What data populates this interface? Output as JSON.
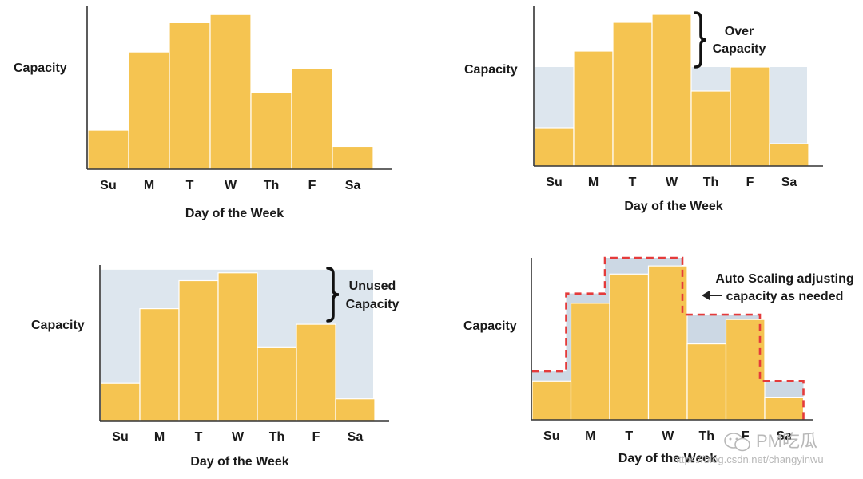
{
  "colors": {
    "bar_fill": "#f5c451",
    "bar_stroke": "#ffffff",
    "capacity_band": "#dde6ee",
    "scaling_band": "#ccd8e4",
    "dashed_line": "#e43b3b",
    "axis": "#333333",
    "text": "#1a1a1a"
  },
  "watermark": {
    "brand": "PM吃瓜",
    "url": "https://blog.csdn.net/changyinwu"
  },
  "chart_data": [
    {
      "type": "bar",
      "panel": "top-left",
      "categories": [
        "Su",
        "M",
        "T",
        "W",
        "Th",
        "F",
        "Sa"
      ],
      "values": [
        24,
        72,
        90,
        95,
        47,
        62,
        14
      ],
      "ylabel": "Capacity",
      "xlabel": "Day of the Week",
      "ylim": [
        0,
        100
      ],
      "grid": false
    },
    {
      "type": "bar",
      "panel": "top-right",
      "categories": [
        "Su",
        "M",
        "T",
        "W",
        "Th",
        "F",
        "Sa"
      ],
      "values": [
        24,
        72,
        90,
        95,
        47,
        62,
        14
      ],
      "capacity_level": 62,
      "annotation": "Over Capacity",
      "ylabel": "Capacity",
      "xlabel": "Day of the Week",
      "ylim": [
        0,
        100
      ],
      "grid": false
    },
    {
      "type": "bar",
      "panel": "bottom-left",
      "categories": [
        "Su",
        "M",
        "T",
        "W",
        "Th",
        "F",
        "Sa"
      ],
      "values": [
        24,
        72,
        90,
        95,
        47,
        62,
        14
      ],
      "capacity_level": 97,
      "annotation": "Unused Capacity",
      "ylabel": "Capacity",
      "xlabel": "Day of the Week",
      "ylim": [
        0,
        100
      ],
      "grid": false
    },
    {
      "type": "bar",
      "panel": "bottom-right",
      "categories": [
        "Su",
        "M",
        "T",
        "W",
        "Th",
        "F",
        "Sa"
      ],
      "values": [
        24,
        72,
        90,
        95,
        47,
        62,
        14
      ],
      "scaled_capacity": [
        30,
        78,
        100,
        100,
        65,
        65,
        24
      ],
      "annotation": "Auto Scaling adjusting capacity as needed",
      "ylabel": "Capacity",
      "xlabel": "Day of the Week",
      "ylim": [
        0,
        100
      ],
      "grid": false
    }
  ]
}
